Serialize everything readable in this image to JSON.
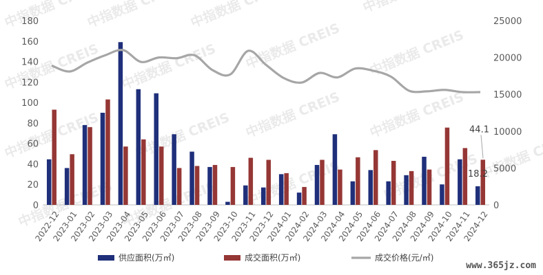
{
  "watermark": "中指数据 CREIS",
  "site_watermark": "www.365jz.com",
  "colors": {
    "supply": "#1f2f7a",
    "deal": "#953735",
    "price": "#a6a6a6",
    "axis": "#bfbfbf"
  },
  "chart_data": {
    "type": "bar",
    "categories": [
      "2022-12",
      "2023-01",
      "2023-02",
      "2023-03",
      "2023-04",
      "2023-05",
      "2023-06",
      "2023-07",
      "2023-08",
      "2023-09",
      "2023-10",
      "2023-11",
      "2023-12",
      "2024-01",
      "2024-02",
      "2024-03",
      "2024-04",
      "2024-05",
      "2024-06",
      "2024-07",
      "2024-08",
      "2024-09",
      "2024-10",
      "2024-11",
      "2024-12"
    ],
    "series": [
      {
        "name": "供应面积(万㎡)",
        "type": "bar",
        "axis": "left",
        "values": [
          44.5,
          36,
          78,
          90,
          159,
          113,
          109,
          69,
          52,
          37,
          3,
          19,
          17,
          30,
          12,
          39,
          69,
          23,
          34,
          23,
          29,
          47,
          20,
          44.5,
          18.2
        ]
      },
      {
        "name": "成交面积(万㎡)",
        "type": "bar",
        "axis": "left",
        "values": [
          93,
          49.5,
          76,
          103,
          57,
          64,
          57,
          36,
          38,
          39,
          37,
          46,
          44,
          31,
          17.5,
          44,
          34.5,
          46.5,
          53.5,
          43,
          33,
          34.5,
          75.5,
          55.5,
          44.1
        ]
      },
      {
        "name": "成交价格(元/㎡)",
        "type": "line",
        "axis": "right",
        "values": [
          18900,
          18100,
          19300,
          20300,
          21000,
          19400,
          20000,
          19900,
          20300,
          18300,
          17700,
          20900,
          19000,
          17200,
          16600,
          17900,
          17300,
          18500,
          18200,
          17400,
          15500,
          15400,
          15600,
          15300,
          15300
        ]
      }
    ],
    "left_axis": {
      "min": 0,
      "max": 180,
      "step": 20
    },
    "right_axis": {
      "min": 0,
      "max": 25000,
      "step": 5000
    },
    "data_labels": [
      "44.1",
      "18.2"
    ],
    "legend_position": "bottom",
    "grid": false
  }
}
